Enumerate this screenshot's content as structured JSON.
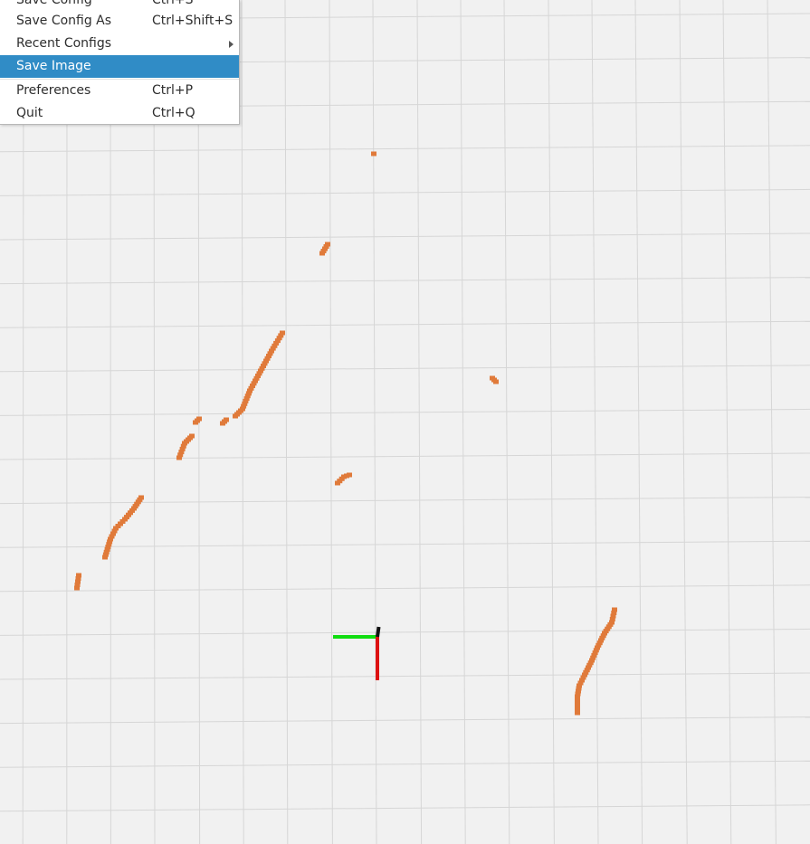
{
  "menu": {
    "items": [
      {
        "label": "Save Config",
        "shortcut": "Ctrl+S"
      },
      {
        "label": "Save Config As",
        "shortcut": "Ctrl+Shift+S"
      },
      {
        "label": "Recent Configs",
        "shortcut": ""
      },
      {
        "label": "Save Image",
        "shortcut": ""
      },
      {
        "label": "Preferences",
        "shortcut": "Ctrl+P"
      },
      {
        "label": "Quit",
        "shortcut": "Ctrl+Q"
      }
    ],
    "highlighted": "Save Image"
  },
  "colors": {
    "background": "#f1f1f1",
    "grid": "#d6d6d6",
    "scan_points": "#e07a3a",
    "axis_x": "#dd1111",
    "axis_y": "#11dd11",
    "axis_z": "#111111",
    "menu_highlight": "#308cc6"
  },
  "icons": {
    "submenu_arrow": "triangle-right"
  }
}
